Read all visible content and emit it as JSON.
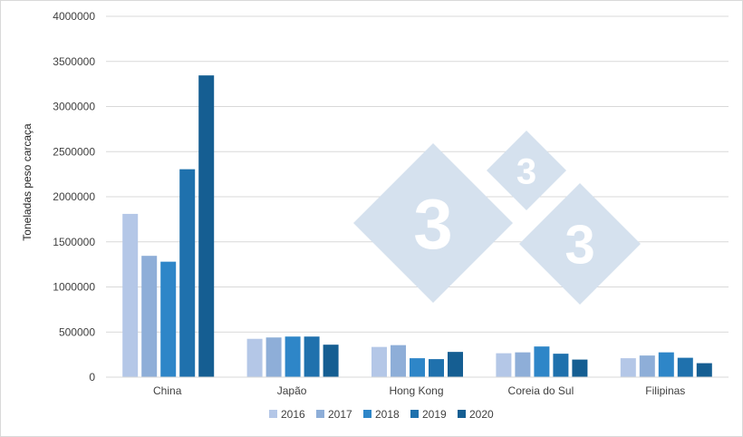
{
  "chart_data": {
    "type": "bar",
    "title": "",
    "xlabel": "",
    "ylabel": "Toneladas peso carcaça",
    "ylim": [
      0,
      4000000
    ],
    "yticks": [
      0,
      500000,
      1000000,
      1500000,
      2000000,
      2500000,
      3000000,
      3500000,
      4000000
    ],
    "grid": true,
    "legend_position": "bottom",
    "categories": [
      "China",
      "Japão",
      "Hong Kong",
      "Coreia do Sul",
      "Filipinas"
    ],
    "series": [
      {
        "name": "2016",
        "color": "#b4c7e7",
        "values": [
          1810000,
          425000,
          335000,
          265000,
          210000
        ]
      },
      {
        "name": "2017",
        "color": "#8eaed8",
        "values": [
          1345000,
          440000,
          355000,
          275000,
          240000
        ]
      },
      {
        "name": "2018",
        "color": "#2e86c8",
        "values": [
          1280000,
          450000,
          210000,
          340000,
          275000
        ]
      },
      {
        "name": "2019",
        "color": "#1f71ad",
        "values": [
          2305000,
          450000,
          200000,
          260000,
          215000
        ]
      },
      {
        "name": "2020",
        "color": "#155e92",
        "values": [
          3345000,
          360000,
          280000,
          195000,
          155000
        ]
      }
    ]
  },
  "watermark": {
    "glyphs": [
      "3",
      "3",
      "3"
    ],
    "color": "#d5e1ee",
    "icon": "333-logo-watermark"
  }
}
